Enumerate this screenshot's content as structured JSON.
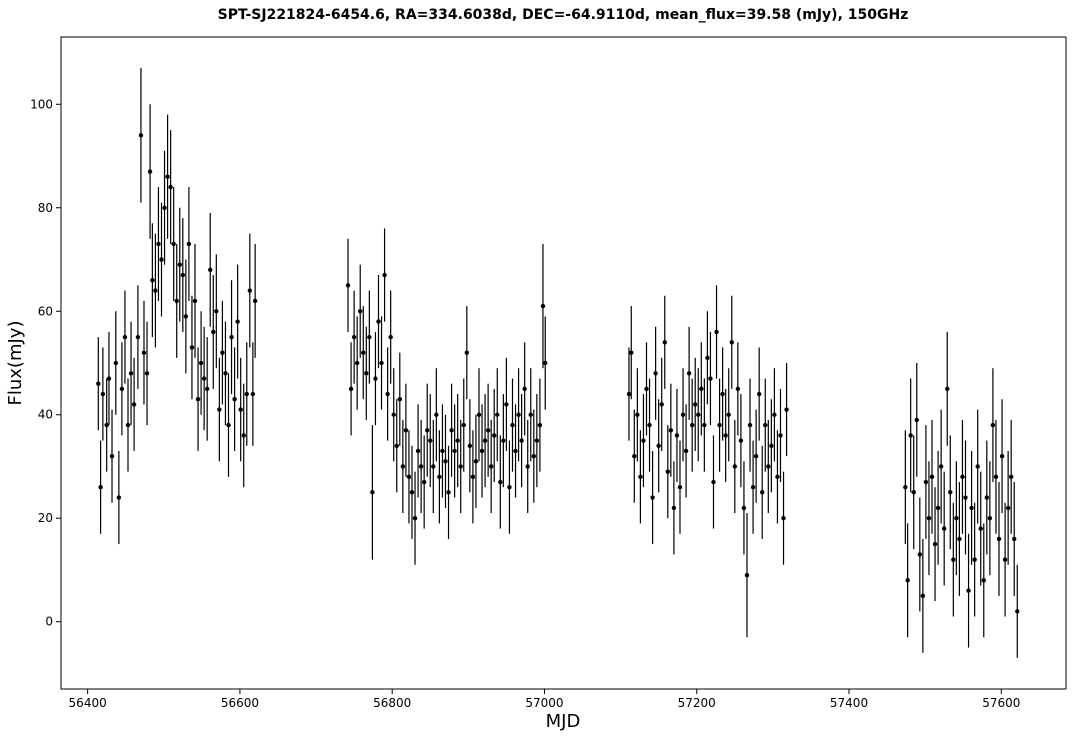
{
  "chart_data": {
    "type": "scatter",
    "title": "SPT-SJ221824-6454.6, RA=334.6038d, DEC=-64.9110d, mean_flux=39.58 (mJy), 150GHz",
    "xlabel": "MJD",
    "ylabel": "Flux(mJy)",
    "xlim": [
      56365,
      57685
    ],
    "ylim": [
      -13,
      113
    ],
    "xticks": [
      56400,
      56600,
      56800,
      57000,
      57200,
      57400,
      57600
    ],
    "yticks": [
      0,
      20,
      40,
      60,
      80,
      100
    ],
    "grid": false,
    "legend": "none",
    "marker": "point with vertical error bar",
    "series": [
      {
        "x": [
          56414,
          56417,
          56420,
          56425,
          56428,
          56432,
          56437,
          56441,
          56445,
          56449,
          56453,
          56457,
          56461,
          56466,
          56470,
          56474,
          56478,
          56482,
          56485,
          56489,
          56493,
          56497,
          56501,
          56505,
          56509,
          56513,
          56517,
          56521,
          56525,
          56529,
          56533,
          56537,
          56541,
          56545,
          56549,
          56553,
          56557,
          56561,
          56565,
          56569,
          56573,
          56577,
          56581,
          56585,
          56589,
          56593,
          56597,
          56601,
          56605,
          56609,
          56613,
          56617,
          56620
        ],
        "y": [
          46,
          26,
          44,
          38,
          47,
          32,
          50,
          24,
          45,
          55,
          38,
          48,
          42,
          55,
          94,
          52,
          48,
          87,
          66,
          64,
          73,
          70,
          80,
          86,
          84,
          73,
          62,
          69,
          67,
          59,
          73,
          53,
          62,
          43,
          50,
          47,
          45,
          68,
          56,
          60,
          41,
          52,
          48,
          38,
          55,
          43,
          58,
          41,
          36,
          44,
          64,
          44,
          62
        ],
        "yerr": [
          9,
          9,
          9,
          9,
          9,
          9,
          10,
          9,
          9,
          9,
          9,
          10,
          9,
          10,
          13,
          10,
          10,
          13,
          11,
          11,
          11,
          11,
          11,
          12,
          11,
          11,
          11,
          11,
          11,
          11,
          11,
          10,
          11,
          10,
          10,
          10,
          10,
          11,
          11,
          11,
          10,
          10,
          10,
          10,
          11,
          10,
          11,
          10,
          10,
          10,
          11,
          10,
          11
        ]
      },
      {
        "x": [
          56742,
          56746,
          56750,
          56754,
          56758,
          56762,
          56766,
          56770,
          56774,
          56778,
          56782,
          56786,
          56790,
          56794,
          56798,
          56802,
          56806,
          56810,
          56814,
          56818,
          56822,
          56826,
          56830,
          56834,
          56838,
          56842,
          56846,
          56850,
          56854,
          56858,
          56862,
          56866,
          56870,
          56874,
          56878,
          56882,
          56886,
          56890,
          56894,
          56898,
          56902,
          56906,
          56910,
          56914,
          56918,
          56922,
          56926,
          56930,
          56934,
          56938,
          56942,
          56946,
          56950,
          56954,
          56958,
          56962,
          56966,
          56970,
          56974,
          56978,
          56982,
          56986,
          56990,
          56994,
          56998,
          57001
        ],
        "y": [
          65,
          45,
          55,
          50,
          60,
          52,
          48,
          55,
          25,
          47,
          58,
          50,
          67,
          44,
          55,
          40,
          34,
          43,
          30,
          37,
          28,
          25,
          20,
          33,
          30,
          27,
          37,
          35,
          30,
          40,
          28,
          33,
          31,
          25,
          37,
          33,
          35,
          30,
          38,
          52,
          34,
          28,
          31,
          40,
          33,
          35,
          37,
          30,
          36,
          40,
          27,
          35,
          42,
          26,
          38,
          33,
          40,
          35,
          45,
          30,
          40,
          32,
          35,
          38,
          61,
          50
        ],
        "yerr": [
          9,
          9,
          9,
          9,
          9,
          9,
          9,
          9,
          13,
          9,
          9,
          9,
          9,
          9,
          9,
          9,
          9,
          9,
          9,
          9,
          9,
          9,
          9,
          9,
          9,
          9,
          9,
          9,
          9,
          9,
          9,
          9,
          9,
          9,
          9,
          9,
          9,
          9,
          9,
          9,
          9,
          9,
          9,
          9,
          9,
          9,
          9,
          9,
          9,
          9,
          9,
          9,
          9,
          9,
          9,
          9,
          9,
          9,
          9,
          9,
          9,
          9,
          9,
          9,
          12,
          9
        ]
      },
      {
        "x": [
          57111,
          57114,
          57118,
          57122,
          57126,
          57130,
          57134,
          57138,
          57142,
          57146,
          57150,
          57154,
          57158,
          57162,
          57166,
          57170,
          57174,
          57178,
          57182,
          57186,
          57190,
          57194,
          57198,
          57202,
          57206,
          57210,
          57214,
          57218,
          57222,
          57226,
          57230,
          57234,
          57238,
          57242,
          57246,
          57250,
          57254,
          57258,
          57262,
          57266,
          57270,
          57274,
          57278,
          57282,
          57286,
          57290,
          57294,
          57298,
          57302,
          57306,
          57310,
          57314,
          57318
        ],
        "y": [
          44,
          52,
          32,
          40,
          28,
          35,
          45,
          38,
          24,
          48,
          34,
          42,
          54,
          29,
          37,
          22,
          36,
          26,
          40,
          33,
          48,
          38,
          42,
          40,
          45,
          38,
          51,
          47,
          27,
          56,
          38,
          44,
          36,
          40,
          54,
          30,
          45,
          35,
          22,
          9,
          38,
          26,
          32,
          44,
          25,
          38,
          30,
          34,
          40,
          28,
          36,
          20,
          41
        ],
        "yerr": [
          9,
          9,
          9,
          9,
          9,
          9,
          9,
          9,
          9,
          9,
          9,
          9,
          9,
          9,
          9,
          9,
          9,
          9,
          9,
          9,
          9,
          9,
          9,
          9,
          9,
          9,
          9,
          9,
          9,
          9,
          9,
          9,
          9,
          9,
          9,
          9,
          9,
          9,
          9,
          12,
          9,
          9,
          9,
          9,
          9,
          9,
          9,
          9,
          9,
          9,
          9,
          9,
          9
        ]
      },
      {
        "x": [
          57474,
          57477,
          57481,
          57485,
          57489,
          57493,
          57497,
          57501,
          57505,
          57509,
          57513,
          57517,
          57521,
          57525,
          57529,
          57533,
          57537,
          57541,
          57545,
          57549,
          57553,
          57557,
          57561,
          57565,
          57569,
          57573,
          57577,
          57581,
          57585,
          57589,
          57593,
          57597,
          57601,
          57605,
          57609,
          57613,
          57617,
          57621
        ],
        "y": [
          26,
          8,
          36,
          25,
          39,
          13,
          5,
          27,
          20,
          28,
          15,
          22,
          30,
          18,
          45,
          25,
          12,
          20,
          16,
          28,
          24,
          6,
          22,
          12,
          30,
          18,
          8,
          24,
          20,
          38,
          28,
          16,
          32,
          12,
          22,
          28,
          16,
          2
        ],
        "yerr": [
          11,
          11,
          11,
          11,
          11,
          11,
          11,
          11,
          11,
          11,
          11,
          11,
          11,
          11,
          11,
          11,
          11,
          11,
          11,
          11,
          11,
          11,
          11,
          11,
          11,
          11,
          11,
          11,
          11,
          11,
          11,
          11,
          11,
          11,
          11,
          11,
          11,
          9
        ]
      }
    ]
  }
}
